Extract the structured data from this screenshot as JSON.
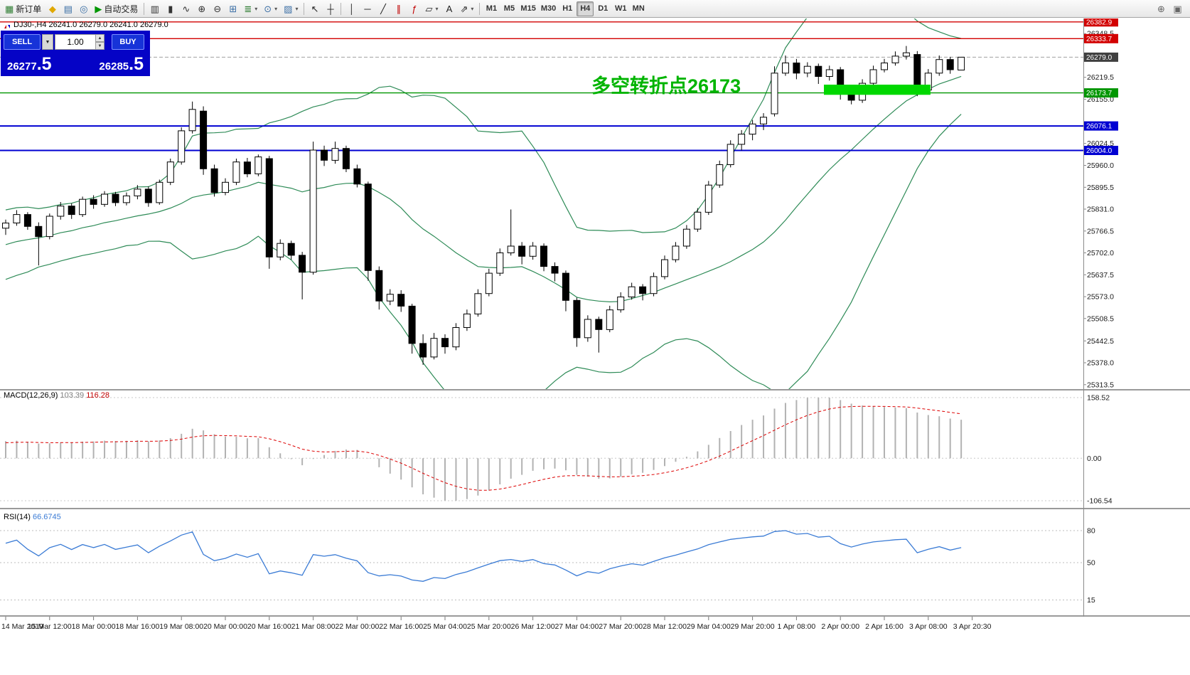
{
  "toolbar": {
    "items": [
      {
        "name": "new-order-button",
        "icon": "new-order-icon",
        "glyph": "▦",
        "color": "#2e7d32",
        "label": "新订单"
      },
      {
        "name": "chart-profiles-button",
        "icon": "diamond-icon",
        "glyph": "◆",
        "color": "#e0a800"
      },
      {
        "name": "market-watch-button",
        "icon": "window-icon",
        "glyph": "▤",
        "color": "#3a6ea5"
      },
      {
        "name": "refresh-button",
        "icon": "refresh-icon",
        "glyph": "◎",
        "color": "#3a6ea5"
      },
      {
        "name": "autotrading-button",
        "icon": "play-icon",
        "glyph": "▶",
        "color": "#009600",
        "label": "自动交易"
      },
      {
        "sep": true
      },
      {
        "name": "bar-chart-button",
        "icon": "bar-chart-icon",
        "glyph": "▥",
        "color": "#333333"
      },
      {
        "name": "candlestick-chart-button",
        "icon": "candlestick-icon",
        "glyph": "▮",
        "color": "#333333"
      },
      {
        "name": "line-chart-button",
        "icon": "line-chart-icon",
        "glyph": "∿",
        "color": "#333333"
      },
      {
        "name": "zoom-in-button",
        "icon": "zoom-in-icon",
        "glyph": "⊕",
        "color": "#333333"
      },
      {
        "name": "zoom-out-button",
        "icon": "zoom-out-icon",
        "glyph": "⊖",
        "color": "#333333"
      },
      {
        "name": "tile-windows-button",
        "icon": "tile-windows-icon",
        "glyph": "⊞",
        "color": "#3a6ea5"
      },
      {
        "name": "indicators-button",
        "icon": "indicators-icon",
        "glyph": "≣",
        "color": "#2e7d32",
        "caret": true
      },
      {
        "name": "periods-button",
        "icon": "clock-icon",
        "glyph": "⊙",
        "color": "#3a6ea5",
        "caret": true
      },
      {
        "name": "templates-button",
        "icon": "template-icon",
        "glyph": "▨",
        "color": "#3a6ea5",
        "caret": true
      },
      {
        "sep": true
      },
      {
        "name": "cursor-button",
        "icon": "cursor-icon",
        "glyph": "↖",
        "color": "#222222"
      },
      {
        "name": "crosshair-button",
        "icon": "crosshair-icon",
        "glyph": "┼",
        "color": "#222222"
      },
      {
        "sep": true
      },
      {
        "name": "vertical-line-button",
        "icon": "vertical-line-icon",
        "glyph": "│",
        "color": "#222222"
      },
      {
        "name": "horizontal-line-button",
        "icon": "horizontal-line-icon",
        "glyph": "─",
        "color": "#222222"
      },
      {
        "name": "trendline-button",
        "icon": "trendline-icon",
        "glyph": "╱",
        "color": "#222222"
      },
      {
        "name": "channel-button",
        "icon": "channel-icon",
        "glyph": "∥",
        "color": "#c00000"
      },
      {
        "name": "fibonacci-button",
        "icon": "fibonacci-icon",
        "glyph": "ƒ",
        "color": "#c00000"
      },
      {
        "name": "shapes-button",
        "icon": "shapes-icon",
        "glyph": "▱",
        "color": "#222222",
        "caret": true
      },
      {
        "name": "text-tool-button",
        "icon": "text-icon",
        "glyph": "A",
        "color": "#222222"
      },
      {
        "name": "arrows-tool-button",
        "icon": "arrow-tool-icon",
        "glyph": "⇗",
        "color": "#222222",
        "caret": true
      },
      {
        "sep": true
      }
    ],
    "timeframes": [
      "M1",
      "M5",
      "M15",
      "M30",
      "H1",
      "H4",
      "D1",
      "W1",
      "MN"
    ],
    "active_timeframe": "H4",
    "right_items": [
      {
        "name": "magnifier-plus-button",
        "icon": "magnifier-icon",
        "glyph": "⊕",
        "color": "#666666"
      },
      {
        "name": "panel-toggle-button",
        "icon": "panel-icon",
        "glyph": "▣",
        "color": "#666666"
      }
    ]
  },
  "trade_panel": {
    "sell_label": "SELL",
    "buy_label": "BUY",
    "volume": "1.00",
    "sell_price": "26277",
    "sell_frac": ".5",
    "buy_price": "26285",
    "buy_frac": ".5"
  },
  "chart": {
    "info": "DJ30-,H4  26241.0 26279.0 26241.0 26279.0",
    "annotation": {
      "text": "多空转折点26173",
      "color": "#00b400"
    },
    "highlight_rect": {
      "start_index": 74.5,
      "end_index": 84.2,
      "price_top": 26198,
      "price_bottom": 26168,
      "color": "#00d800"
    },
    "hlines": [
      {
        "label": "26382.9",
        "price": 26382.9,
        "color": "#d20000",
        "width": 1.4
      },
      {
        "label": "26333.7",
        "price": 26333.7,
        "color": "#d20000",
        "width": 1.4
      },
      {
        "label": "26173.7",
        "price": 26173.7,
        "color": "#009600",
        "width": 1.4
      },
      {
        "label": "26076.1",
        "price": 26076.1,
        "color": "#0000d2",
        "width": 2
      },
      {
        "label": "26004.0",
        "price": 26004.0,
        "color": "#0000d2",
        "width": 2
      }
    ],
    "current_price": {
      "label": "26279.0",
      "price": 26279.0,
      "tag_bg": "#404040"
    },
    "price_ticks": [
      "26348.5",
      "26219.5",
      "26155.0",
      "26024.5",
      "25960.0",
      "25895.5",
      "25831.0",
      "25766.5",
      "25702.0",
      "25637.5",
      "25573.0",
      "25508.5",
      "25442.5",
      "25378.0",
      "25313.5"
    ]
  },
  "macd": {
    "name": "MACD(12,26,9)",
    "main_value": "103.39",
    "signal_value": "116.28",
    "axis_labels": {
      "max": "158.52",
      "zero": "0.00",
      "min": "-106.54"
    }
  },
  "rsi": {
    "name": "RSI(14)",
    "value": "66.6745",
    "levels": [
      "80",
      "50",
      "15"
    ]
  },
  "chart_data": {
    "type": "candlestick",
    "symbol": "DJ30-",
    "timeframe": "H4",
    "overlays": {
      "bollinger_period": 20,
      "bollinger_deviation": 2
    },
    "ohlc": [
      [
        25775,
        25800,
        25755,
        25790
      ],
      [
        25790,
        25828,
        25782,
        25815
      ],
      [
        25815,
        25822,
        25770,
        25780
      ],
      [
        25780,
        25792,
        25665,
        25750
      ],
      [
        25750,
        25818,
        25742,
        25810
      ],
      [
        25810,
        25852,
        25800,
        25840
      ],
      [
        25840,
        25848,
        25802,
        25815
      ],
      [
        25815,
        25868,
        25808,
        25860
      ],
      [
        25860,
        25872,
        25832,
        25845
      ],
      [
        25845,
        25884,
        25838,
        25875
      ],
      [
        25875,
        25882,
        25840,
        25850
      ],
      [
        25850,
        25880,
        25842,
        25870
      ],
      [
        25870,
        25902,
        25860,
        25890
      ],
      [
        25890,
        25898,
        25838,
        25850
      ],
      [
        25850,
        25918,
        25844,
        25910
      ],
      [
        25910,
        25980,
        25902,
        25970
      ],
      [
        25970,
        26072,
        25962,
        26062
      ],
      [
        26062,
        26148,
        26054,
        26125
      ],
      [
        26120,
        26134,
        25932,
        25950
      ],
      [
        25950,
        25962,
        25868,
        25880
      ],
      [
        25880,
        25922,
        25872,
        25910
      ],
      [
        25910,
        25980,
        25902,
        25970
      ],
      [
        25970,
        25982,
        25925,
        25935
      ],
      [
        25935,
        25992,
        25928,
        25985
      ],
      [
        25980,
        25988,
        25655,
        25690
      ],
      [
        25690,
        25742,
        25680,
        25730
      ],
      [
        25730,
        25738,
        25682,
        25695
      ],
      [
        25695,
        25705,
        25565,
        25645
      ],
      [
        25645,
        26030,
        25638,
        26005
      ],
      [
        26005,
        26018,
        25958,
        25975
      ],
      [
        25975,
        26030,
        25965,
        26010
      ],
      [
        26010,
        26018,
        25940,
        25950
      ],
      [
        25950,
        25962,
        25895,
        25905
      ],
      [
        25905,
        25912,
        25620,
        25650
      ],
      [
        25650,
        25662,
        25535,
        25560
      ],
      [
        25560,
        25595,
        25548,
        25580
      ],
      [
        25580,
        25592,
        25528,
        25545
      ],
      [
        25545,
        25552,
        25405,
        25435
      ],
      [
        25435,
        25462,
        25372,
        25395
      ],
      [
        25395,
        25466,
        25388,
        25450
      ],
      [
        25450,
        25462,
        25405,
        25425
      ],
      [
        25425,
        25495,
        25415,
        25482
      ],
      [
        25482,
        25535,
        25472,
        25522
      ],
      [
        25522,
        25595,
        25514,
        25582
      ],
      [
        25582,
        25655,
        25574,
        25642
      ],
      [
        25642,
        25715,
        25634,
        25702
      ],
      [
        25702,
        25830,
        25694,
        25722
      ],
      [
        25722,
        25734,
        25668,
        25692
      ],
      [
        25692,
        25734,
        25682,
        25722
      ],
      [
        25722,
        25730,
        25648,
        25662
      ],
      [
        25662,
        25674,
        25618,
        25642
      ],
      [
        25642,
        25650,
        25530,
        25562
      ],
      [
        25562,
        25570,
        25425,
        25452
      ],
      [
        25452,
        25518,
        25440,
        25506
      ],
      [
        25506,
        25514,
        25408,
        25476
      ],
      [
        25476,
        25546,
        25468,
        25534
      ],
      [
        25534,
        25586,
        25526,
        25572
      ],
      [
        25572,
        25614,
        25564,
        25602
      ],
      [
        25602,
        25610,
        25562,
        25582
      ],
      [
        25582,
        25644,
        25574,
        25632
      ],
      [
        25632,
        25694,
        25624,
        25682
      ],
      [
        25682,
        25734,
        25674,
        25722
      ],
      [
        25722,
        25784,
        25714,
        25772
      ],
      [
        25772,
        25834,
        25764,
        25822
      ],
      [
        25822,
        25914,
        25814,
        25902
      ],
      [
        25902,
        25974,
        25894,
        25962
      ],
      [
        25962,
        26034,
        25954,
        26022
      ],
      [
        26022,
        26064,
        26004,
        26052
      ],
      [
        26052,
        26094,
        26034,
        26082
      ],
      [
        26082,
        26114,
        26064,
        26102
      ],
      [
        26112,
        26252,
        26104,
        26232
      ],
      [
        26232,
        26284,
        26224,
        26262
      ],
      [
        26262,
        26274,
        26214,
        26232
      ],
      [
        26232,
        26264,
        26220,
        26252
      ],
      [
        26252,
        26260,
        26200,
        26222
      ],
      [
        26222,
        26254,
        26210,
        26242
      ],
      [
        26242,
        26250,
        26154,
        26182
      ],
      [
        26182,
        26194,
        26140,
        26152
      ],
      [
        26152,
        26214,
        26144,
        26202
      ],
      [
        26202,
        26254,
        26194,
        26242
      ],
      [
        26242,
        26274,
        26234,
        26262
      ],
      [
        26262,
        26296,
        26254,
        26282
      ],
      [
        26282,
        26312,
        26272,
        26292
      ],
      [
        26287,
        26297,
        26164,
        26182
      ],
      [
        26182,
        26244,
        26174,
        26232
      ],
      [
        26232,
        26284,
        26224,
        26272
      ],
      [
        26272,
        26280,
        26230,
        26242
      ],
      [
        26241,
        26279,
        26241,
        26279
      ]
    ],
    "time_labels": [
      "14 Mar 2019",
      "15 Mar 12:00",
      "18 Mar 00:00",
      "18 Mar 16:00",
      "19 Mar 08:00",
      "20 Mar 00:00",
      "20 Mar 16:00",
      "21 Mar 08:00",
      "22 Mar 00:00",
      "22 Mar 16:00",
      "25 Mar 04:00",
      "25 Mar 20:00",
      "26 Mar 12:00",
      "27 Mar 04:00",
      "27 Mar 20:00",
      "28 Mar 12:00",
      "29 Mar 04:00",
      "29 Mar 20:00",
      "1 Apr 08:00",
      "2 Apr 00:00",
      "2 Apr 16:00",
      "3 Apr 08:00",
      "3 Apr 20:30"
    ]
  }
}
